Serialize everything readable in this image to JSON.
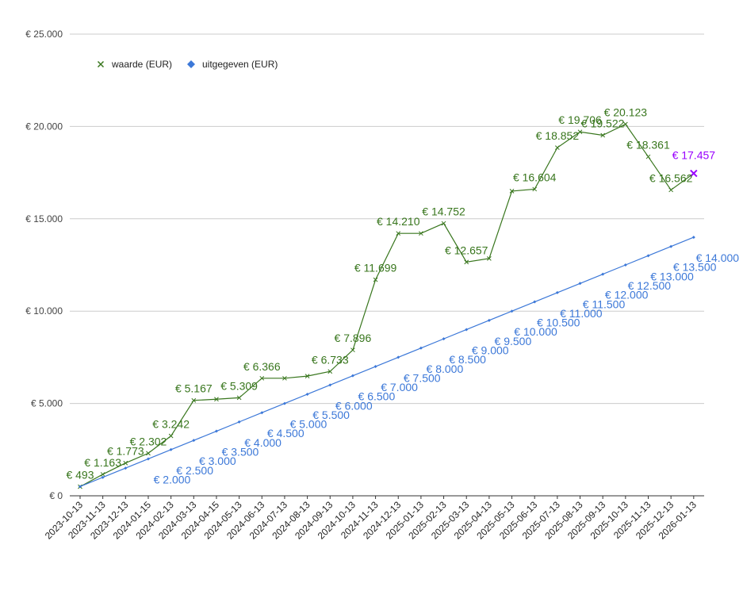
{
  "chart_data": {
    "type": "line",
    "title": "",
    "xlabel": "",
    "ylabel": "",
    "ylim": [
      0,
      25000
    ],
    "y_ticks": [
      "€ 0",
      "€ 5.000",
      "€ 10.000",
      "€ 15.000",
      "€ 20.000",
      "€ 25.000"
    ],
    "y_tick_values": [
      0,
      5000,
      10000,
      15000,
      20000,
      25000
    ],
    "grid": true,
    "legend_position": "top-left",
    "categories": [
      "2023-10-13",
      "2023-11-13",
      "2023-12-13",
      "2024-01-15",
      "2024-02-13",
      "2024-03-13",
      "2024-04-15",
      "2024-05-13",
      "2024-06-13",
      "2024-07-13",
      "2024-08-13",
      "2024-09-13",
      "2024-10-13",
      "2024-11-13",
      "2024-12-13",
      "2025-01-13",
      "2025-02-13",
      "2025-03-13",
      "2025-04-13",
      "2025-05-13",
      "2025-06-13",
      "2025-07-13",
      "2025-08-13",
      "2025-09-13",
      "2025-10-13",
      "2025-11-13",
      "2025-12-13",
      "2026-01-13"
    ],
    "series": [
      {
        "name": "waarde (EUR)",
        "color": "#38761d",
        "marker": "x",
        "values": [
          493,
          1163,
          1773,
          2302,
          3242,
          5167,
          5230,
          5309,
          6366,
          6366,
          6480,
          6733,
          7896,
          11699,
          14210,
          14210,
          14752,
          12657,
          12850,
          16500,
          16604,
          18852,
          19706,
          19522,
          20123,
          18361,
          16562,
          17457
        ],
        "labels": [
          "€ 493",
          "€ 1.163",
          "€ 1.773",
          "€ 2.302",
          "€ 3.242",
          "€ 5.167",
          null,
          "€ 5.309",
          "€ 6.366",
          null,
          null,
          "€ 6.733",
          "€ 7.896",
          "€ 11.699",
          "€ 14.210",
          null,
          "€ 14.752",
          "€ 12.657",
          null,
          null,
          "€ 16.604",
          "€ 18.852",
          "€ 19.706",
          "€ 19.522",
          "€ 20.123",
          "€ 18.361",
          "€ 16.562",
          "€ 17.457"
        ],
        "last_label_color": "#9900ff"
      },
      {
        "name": "uitgegeven (EUR)",
        "color": "#3c78d8",
        "marker": "diamond",
        "values": [
          500,
          1000,
          1500,
          2000,
          2500,
          3000,
          3500,
          4000,
          4500,
          5000,
          5500,
          6000,
          6500,
          7000,
          7500,
          8000,
          8500,
          9000,
          9500,
          10000,
          10500,
          11000,
          11500,
          12000,
          12500,
          13000,
          13500,
          14000
        ],
        "labels": [
          null,
          null,
          null,
          "€ 2.000",
          "€ 2.500",
          "€ 3.000",
          "€ 3.500",
          "€ 4.000",
          "€ 4.500",
          "€ 5.000",
          "€ 5.500",
          "€ 6.000",
          "€ 6.500",
          "€ 7.000",
          "€ 7.500",
          "€ 8.000",
          "€ 8.500",
          "€ 9.000",
          "€ 9.500",
          "€ 10.000",
          "€ 10.500",
          "€ 11.000",
          "€ 11.500",
          "€ 12.000",
          "€ 12.500",
          "€ 13.000",
          "€ 13.500",
          "€ 14.000"
        ]
      }
    ]
  }
}
